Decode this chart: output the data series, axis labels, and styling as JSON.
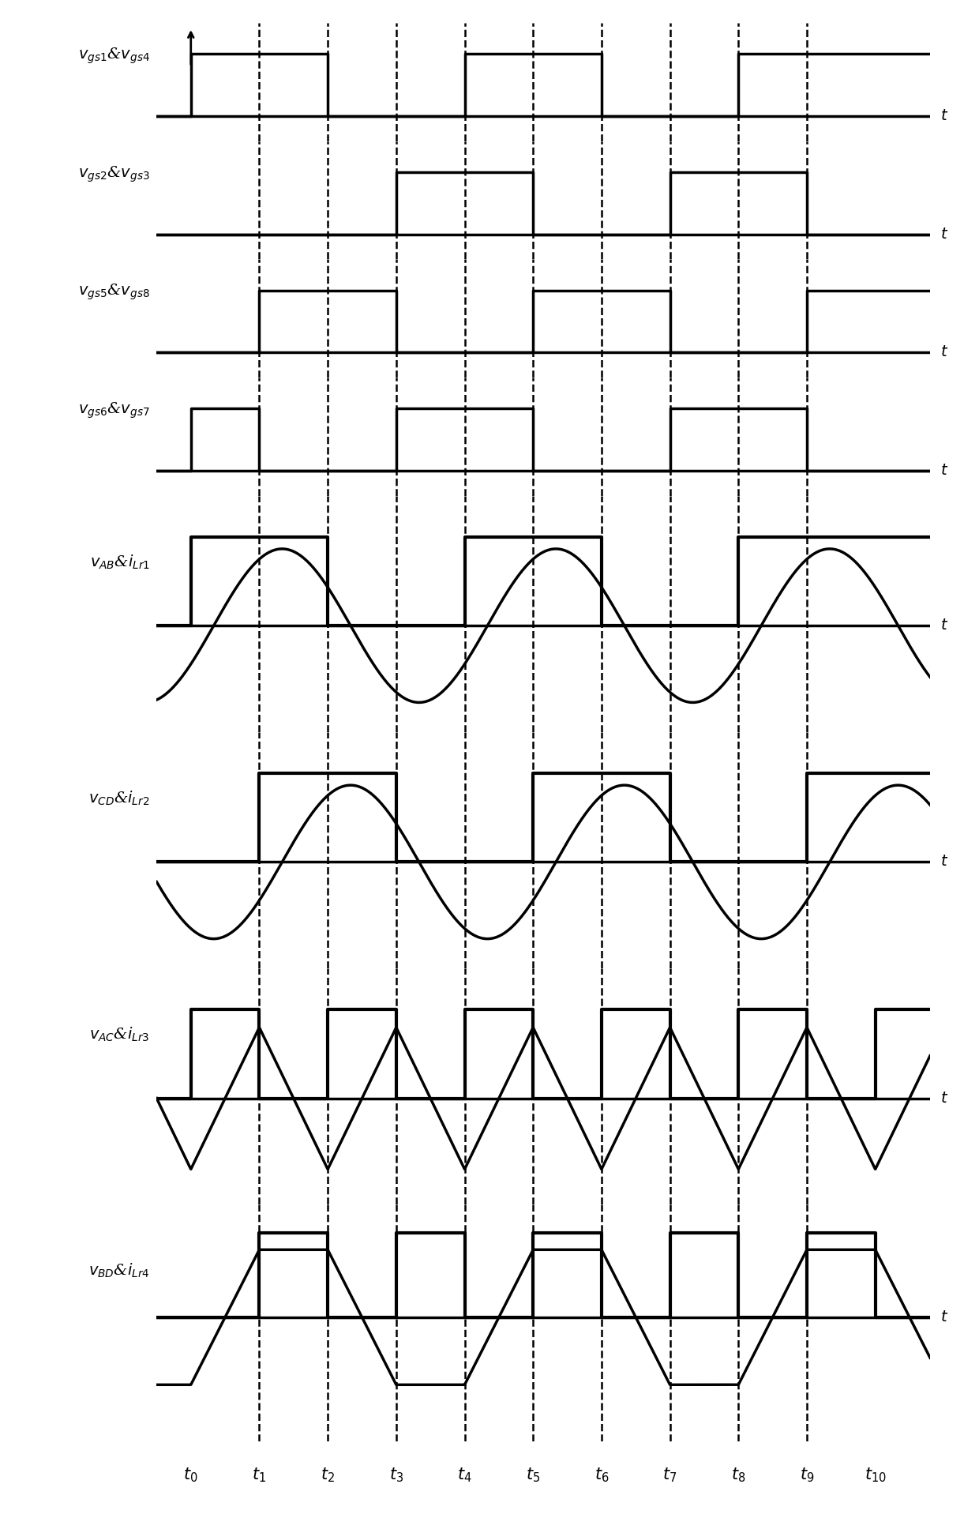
{
  "signal_labels": [
    "$v_{gs1}$&$v_{gs4}$",
    "$v_{gs2}$&$v_{gs3}$",
    "$v_{gs5}$&$v_{gs8}$",
    "$v_{gs6}$&$v_{gs7}$",
    "$v_{AB}$&$i_{Lr1}$",
    "$v_{CD}$&$i_{Lr2}$",
    "$v_{AC}$&$i_{Lr3}$",
    "$v_{BD}$&$i_{Lr4}$"
  ],
  "t_labels": [
    "$t_0$",
    "$t_1$",
    "$t_2$",
    "$t_3$",
    "$t_4$",
    "$t_5$",
    "$t_6$",
    "$t_7$",
    "$t_8$",
    "$t_9$",
    "$t_{10}$"
  ],
  "t_positions": [
    0,
    1,
    2,
    3,
    4,
    5,
    6,
    7,
    8,
    9,
    10
  ],
  "dashed_t": [
    1,
    2,
    3,
    4,
    5,
    6,
    7,
    8,
    9
  ],
  "x_min": -0.5,
  "x_max": 10.8,
  "row_heights": [
    1.0,
    1.0,
    1.0,
    1.0,
    2.0,
    2.0,
    2.0,
    2.0
  ],
  "lw_thick": 2.5,
  "lw_thin": 1.8,
  "fontsize_label": 14,
  "fontsize_t": 15
}
